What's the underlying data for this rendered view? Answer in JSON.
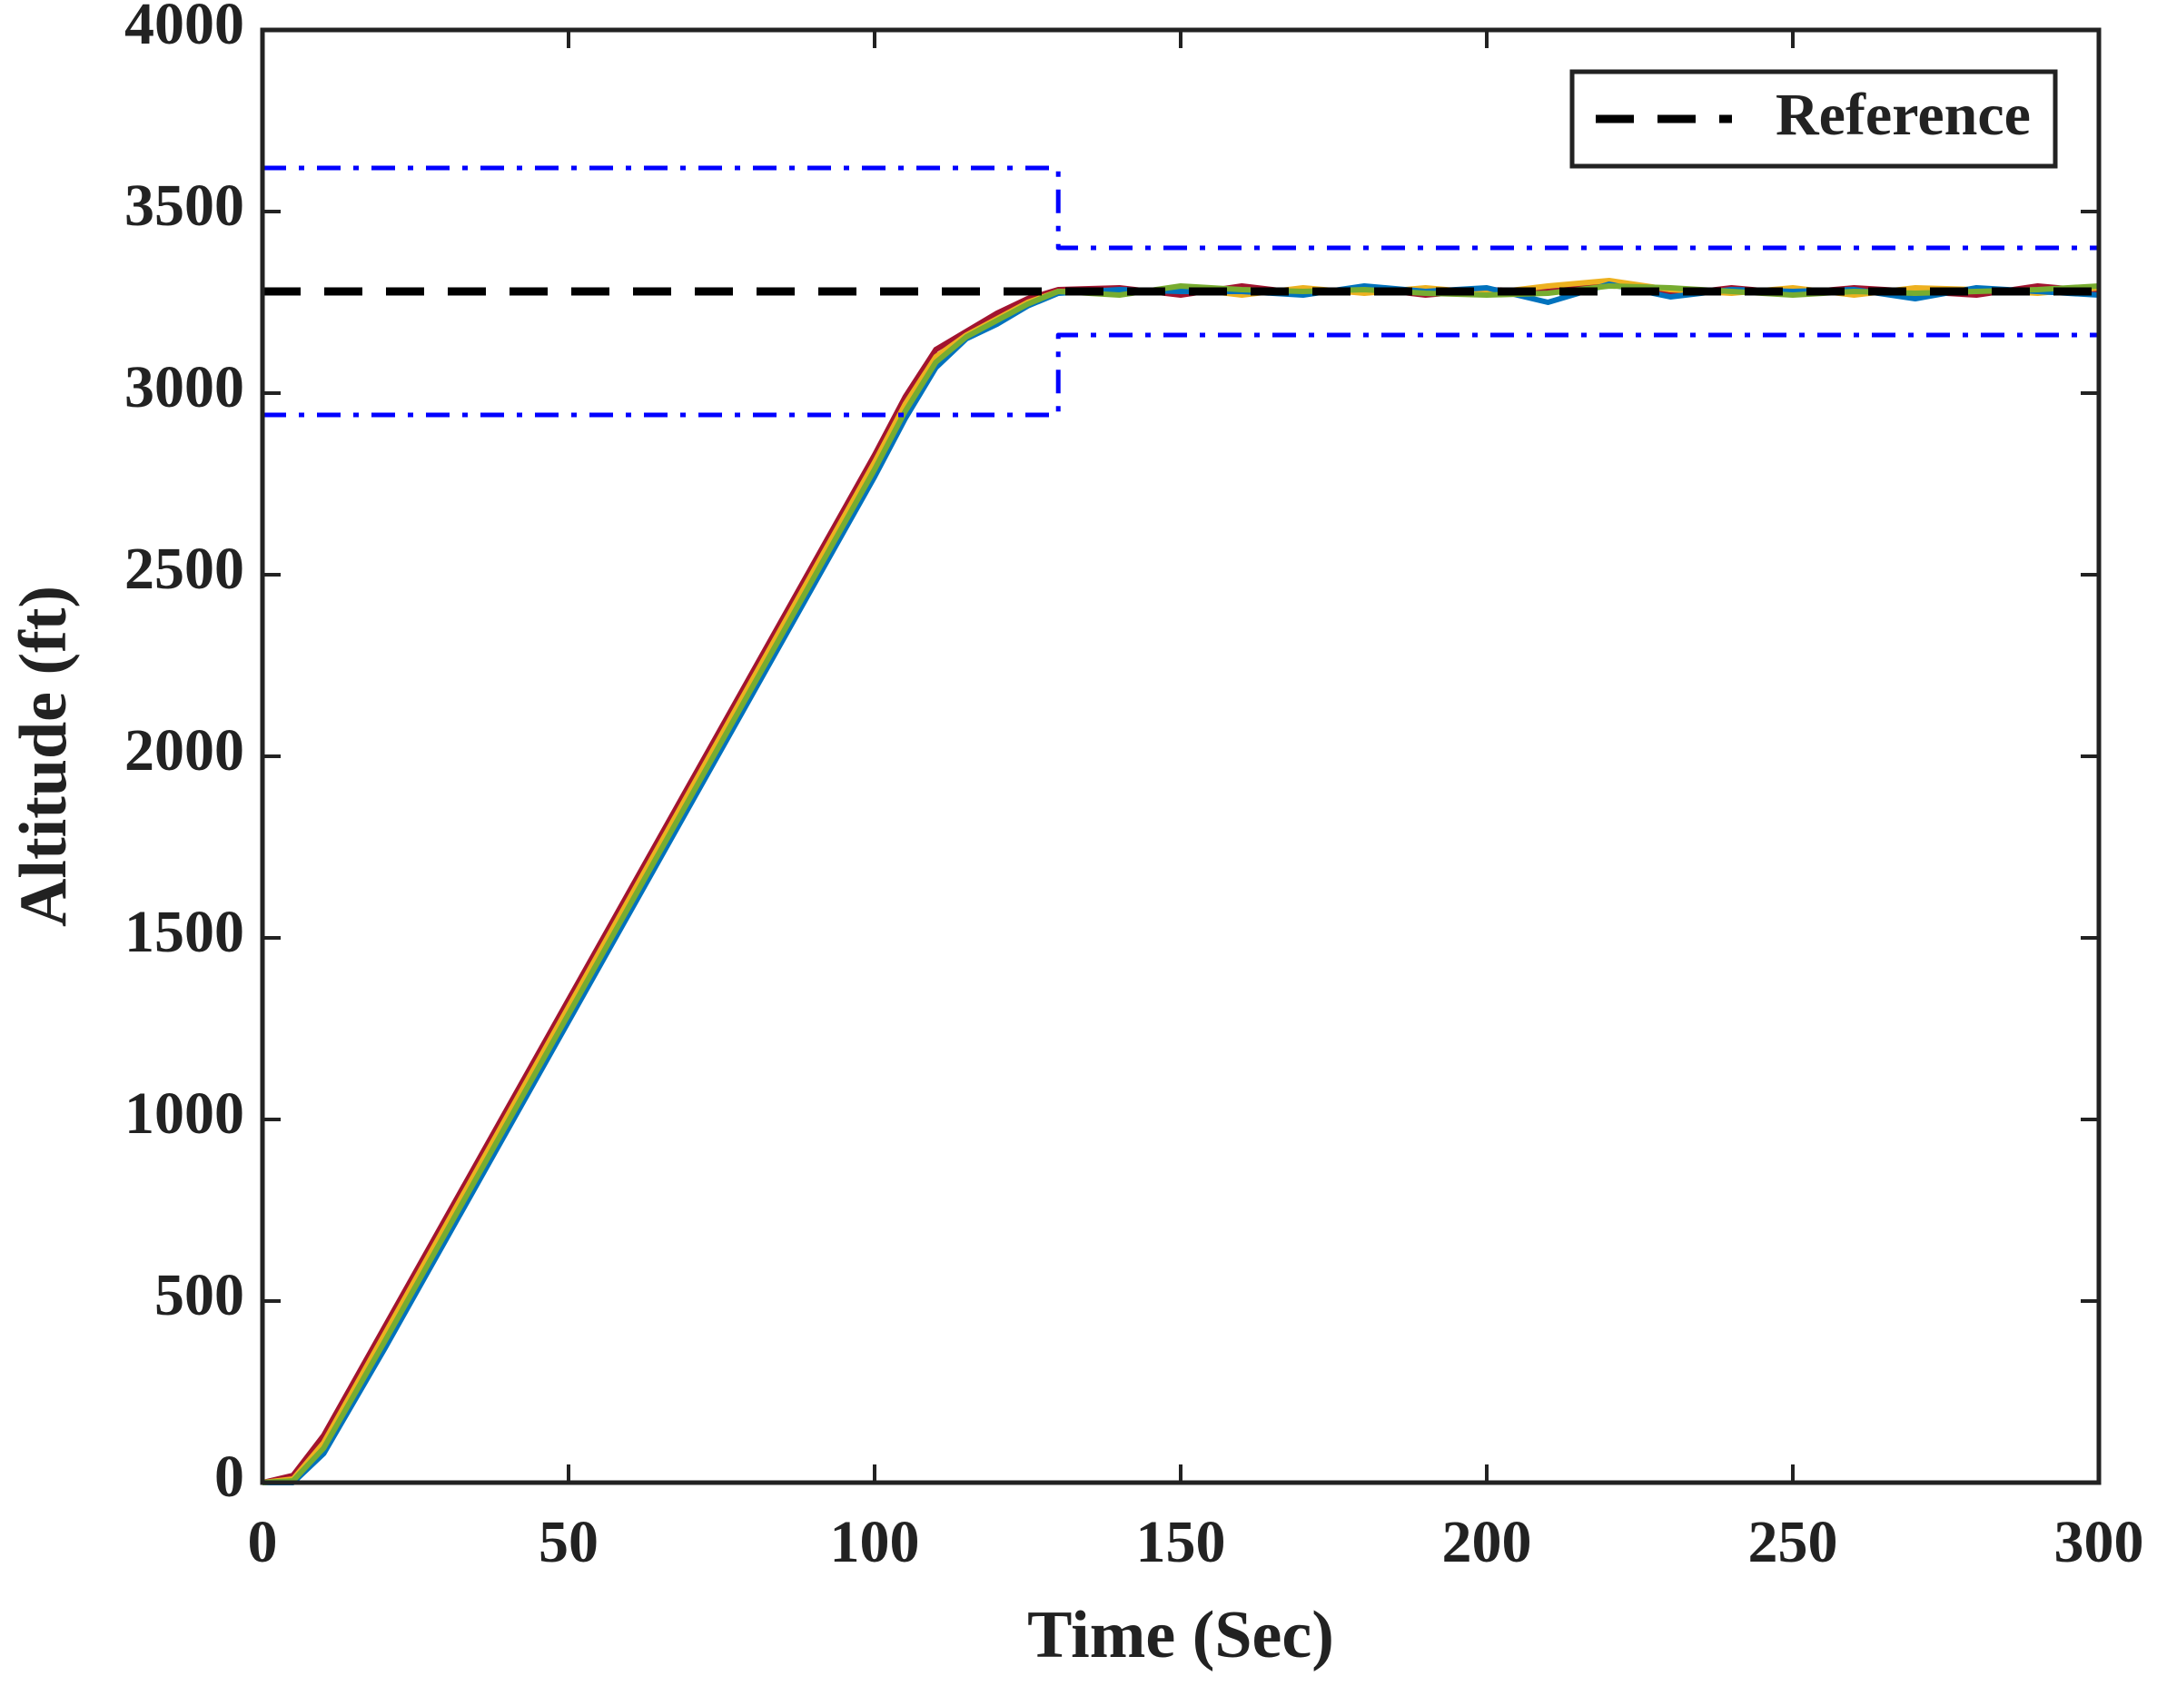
{
  "chart_data": {
    "type": "line",
    "xlabel": "Time (Sec)",
    "ylabel": "Altitude (ft)",
    "xlim": [
      0,
      300
    ],
    "ylim": [
      0,
      4000
    ],
    "xticks": [
      0,
      50,
      100,
      150,
      200,
      250,
      300
    ],
    "yticks": [
      0,
      500,
      1000,
      1500,
      2000,
      2500,
      3000,
      3500,
      4000
    ],
    "grid": false,
    "legend_position": "upper right",
    "series": [
      {
        "color": "#a2142f",
        "linestyle": "solid",
        "x": [
          0,
          5,
          10,
          20,
          30,
          40,
          50,
          60,
          70,
          80,
          90,
          100,
          105,
          110,
          115,
          120,
          125,
          130,
          140,
          150,
          160,
          170,
          180,
          190,
          200,
          210,
          220,
          230,
          240,
          250,
          260,
          270,
          280,
          290,
          300
        ],
        "values": [
          0,
          20,
          130,
          430,
          730,
          1030,
          1330,
          1630,
          1930,
          2230,
          2530,
          2830,
          2990,
          3120,
          3170,
          3220,
          3260,
          3285,
          3290,
          3270,
          3295,
          3275,
          3290,
          3270,
          3285,
          3280,
          3305,
          3270,
          3290,
          3275,
          3290,
          3280,
          3270,
          3295,
          3280
        ]
      },
      {
        "color": "#edb120",
        "linestyle": "solid",
        "x": [
          0,
          5,
          10,
          20,
          30,
          40,
          50,
          60,
          70,
          80,
          90,
          100,
          105,
          110,
          115,
          120,
          125,
          130,
          140,
          150,
          160,
          170,
          180,
          190,
          200,
          210,
          220,
          230,
          240,
          250,
          260,
          270,
          280,
          290,
          300
        ],
        "values": [
          0,
          10,
          110,
          410,
          710,
          1010,
          1310,
          1610,
          1910,
          2210,
          2510,
          2810,
          2970,
          3100,
          3160,
          3205,
          3250,
          3280,
          3275,
          3290,
          3270,
          3290,
          3275,
          3290,
          3275,
          3295,
          3310,
          3285,
          3275,
          3290,
          3270,
          3290,
          3285,
          3275,
          3290
        ]
      },
      {
        "color": "#0072bd",
        "linestyle": "solid",
        "x": [
          0,
          5,
          10,
          20,
          30,
          40,
          50,
          60,
          70,
          80,
          90,
          100,
          105,
          110,
          115,
          120,
          125,
          130,
          140,
          150,
          160,
          170,
          180,
          190,
          200,
          210,
          220,
          230,
          240,
          250,
          260,
          270,
          280,
          290,
          300
        ],
        "values": [
          0,
          0,
          80,
          370,
          670,
          970,
          1270,
          1570,
          1870,
          2170,
          2470,
          2770,
          2930,
          3070,
          3150,
          3190,
          3240,
          3275,
          3285,
          3280,
          3280,
          3270,
          3295,
          3280,
          3290,
          3250,
          3300,
          3265,
          3285,
          3280,
          3285,
          3260,
          3290,
          3280,
          3270
        ]
      },
      {
        "color": "#77ac30",
        "linestyle": "solid",
        "x": [
          0,
          5,
          10,
          20,
          30,
          40,
          50,
          60,
          70,
          80,
          90,
          100,
          105,
          110,
          115,
          120,
          125,
          130,
          140,
          150,
          160,
          170,
          180,
          190,
          200,
          210,
          220,
          230,
          240,
          250,
          260,
          270,
          280,
          290,
          300
        ],
        "values": [
          0,
          5,
          95,
          390,
          690,
          990,
          1290,
          1590,
          1890,
          2190,
          2490,
          2790,
          2950,
          3085,
          3155,
          3200,
          3245,
          3280,
          3270,
          3295,
          3285,
          3280,
          3285,
          3275,
          3270,
          3275,
          3295,
          3290,
          3280,
          3270,
          3280,
          3275,
          3280,
          3285,
          3295
        ]
      },
      {
        "color": "#0000ff",
        "linestyle": "dashdot",
        "x": [
          0,
          130,
          130,
          300
        ],
        "values": [
          3620,
          3620,
          3400,
          3400
        ]
      },
      {
        "color": "#0000ff",
        "linestyle": "dashdot",
        "x": [
          0,
          130,
          130,
          300
        ],
        "values": [
          2940,
          2940,
          3160,
          3160
        ]
      },
      {
        "name": "Reference",
        "color": "#000000",
        "linestyle": "dashed",
        "x": [
          0,
          300
        ],
        "values": [
          3280,
          3280
        ]
      }
    ]
  }
}
